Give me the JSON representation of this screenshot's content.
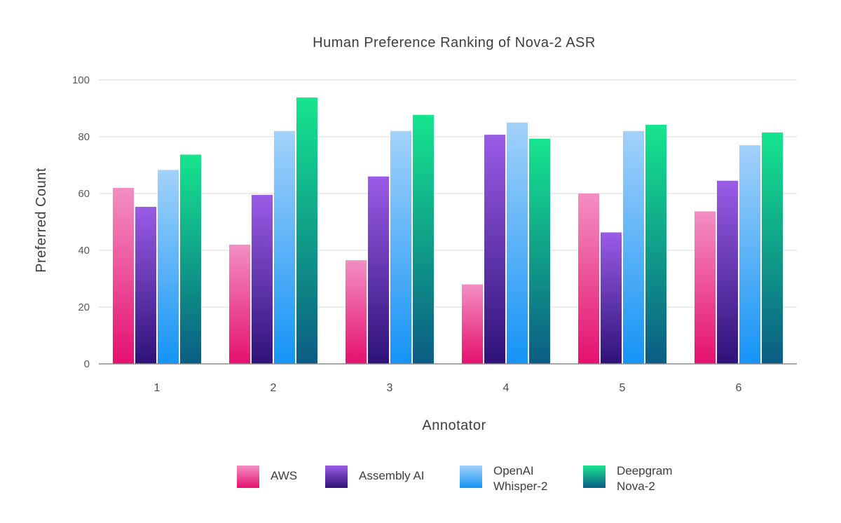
{
  "chart_data": {
    "type": "bar",
    "title": "Human Preference Ranking of Nova-2 ASR",
    "xlabel": "Annotator",
    "ylabel": "Preferred Count",
    "categories": [
      "1",
      "2",
      "3",
      "4",
      "5",
      "6"
    ],
    "ylim": [
      0,
      100
    ],
    "yticks": [
      0,
      20,
      40,
      60,
      80,
      100
    ],
    "grid": true,
    "legend_position": "bottom",
    "series": [
      {
        "name": "AWS",
        "legend_lines": [
          "AWS"
        ],
        "values": [
          62,
          42,
          36.5,
          28,
          60,
          53.7
        ],
        "color_top": "#f38fc2",
        "color_bottom": "#e5106f"
      },
      {
        "name": "Assembly AI",
        "legend_lines": [
          "Assembly AI"
        ],
        "values": [
          55.3,
          59.5,
          66,
          80.7,
          46.3,
          64.5
        ],
        "color_top": "#9a5ce6",
        "color_bottom": "#2e1278"
      },
      {
        "name": "OpenAI Whisper-2",
        "legend_lines": [
          "OpenAI",
          "Whisper-2"
        ],
        "values": [
          68.3,
          82,
          82,
          85,
          82,
          77
        ],
        "color_top": "#a2d2fa",
        "color_bottom": "#1593f5"
      },
      {
        "name": "Deepgram Nova-2",
        "legend_lines": [
          "Deepgram",
          "Nova-2"
        ],
        "values": [
          73.7,
          93.8,
          87.7,
          79.3,
          84.2,
          81.5
        ],
        "color_top": "#16e58e",
        "color_bottom": "#0b5c84"
      }
    ]
  }
}
